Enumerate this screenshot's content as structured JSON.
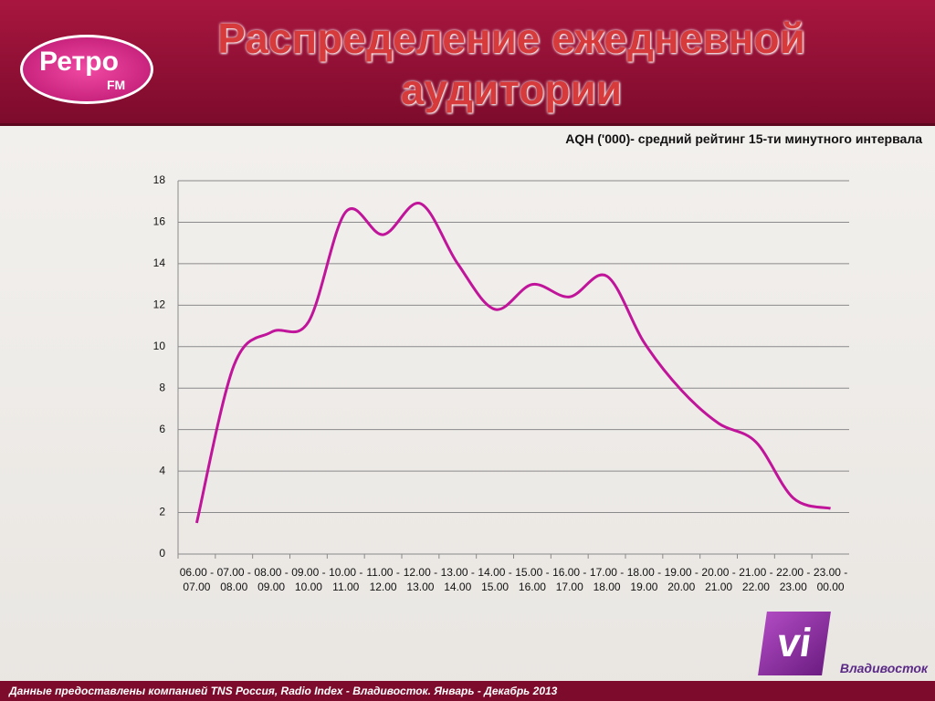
{
  "header": {
    "title": "Распределение ежедневной аудитории",
    "logo": "Ретро",
    "logo_sub": "FM"
  },
  "chart_data": {
    "type": "line",
    "title": "AQH ('000)- средний рейтинг 15-ти минутного интервала",
    "categories": [
      "06.00 - 07.00",
      "07.00 - 08.00",
      "08.00 - 09.00",
      "09.00 - 10.00",
      "10.00 - 11.00",
      "11.00 - 12.00",
      "12.00 - 13.00",
      "13.00 - 14.00",
      "14.00 - 15.00",
      "15.00 - 16.00",
      "16.00 - 17.00",
      "17.00 - 18.00",
      "18.00 - 19.00",
      "19.00 - 20.00",
      "20.00 - 21.00",
      "21.00 - 22.00",
      "22.00 - 23.00",
      "23.00 - 00.00"
    ],
    "values": [
      1.5,
      9.1,
      10.7,
      11.2,
      16.5,
      15.4,
      16.9,
      14.0,
      11.8,
      13.0,
      12.4,
      13.4,
      10.2,
      7.9,
      6.3,
      5.4,
      2.7,
      2.2
    ],
    "color": "#c0149a",
    "smooth": true,
    "ylim": [
      0,
      18
    ],
    "yticks": [
      0,
      2,
      4,
      6,
      8,
      10,
      12,
      14,
      16,
      18
    ],
    "grid": true
  },
  "badge": {
    "logo": "vi",
    "city": "Владивосток"
  },
  "footer": {
    "text": "Данные предоставлены компанией TNS Россия, Radio Index - Владивосток. Январь - Декабрь 2013"
  }
}
